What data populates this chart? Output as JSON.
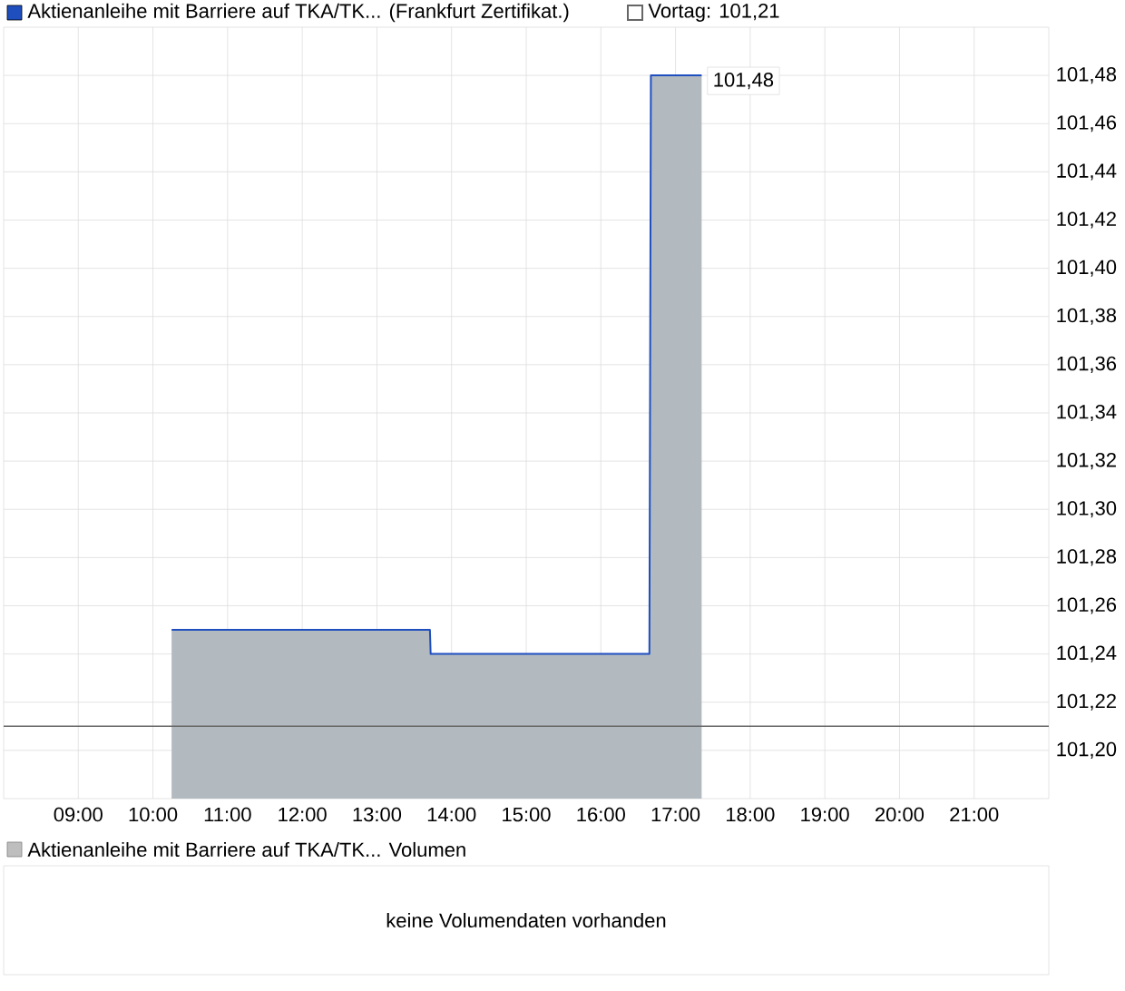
{
  "chart_data": [
    {
      "type": "area",
      "legend": "top",
      "series": [
        {
          "name": "Aktienanleihe mit Barriere auf TKA/TK... (Frankfurt Zertifikat.)",
          "color": "#1f4fbf",
          "x": [
            10.25,
            13.71,
            13.72,
            16.65,
            16.66,
            16.67,
            17.35
          ],
          "values": [
            101.25,
            101.25,
            101.24,
            101.24,
            101.36,
            101.48,
            101.48
          ],
          "value_labels": [
            null,
            null,
            null,
            null,
            null,
            null,
            "101,48"
          ]
        }
      ],
      "xlim": [
        8,
        22
      ],
      "xticks": [
        {
          "value": 9,
          "label": "09:00"
        },
        {
          "value": 10,
          "label": "10:00"
        },
        {
          "value": 11,
          "label": "11:00"
        },
        {
          "value": 12,
          "label": "12:00"
        },
        {
          "value": 13,
          "label": "13:00"
        },
        {
          "value": 14,
          "label": "14:00"
        },
        {
          "value": 15,
          "label": "15:00"
        },
        {
          "value": 16,
          "label": "16:00"
        },
        {
          "value": 17,
          "label": "17:00"
        },
        {
          "value": 18,
          "label": "18:00"
        },
        {
          "value": 19,
          "label": "19:00"
        },
        {
          "value": 20,
          "label": "20:00"
        },
        {
          "value": 21,
          "label": "21:00"
        }
      ],
      "ylim": [
        101.18,
        101.5
      ],
      "yticks": [
        {
          "value": 101.2,
          "label": "101,20"
        },
        {
          "value": 101.22,
          "label": "101,22"
        },
        {
          "value": 101.24,
          "label": "101,24"
        },
        {
          "value": 101.26,
          "label": "101,26"
        },
        {
          "value": 101.28,
          "label": "101,28"
        },
        {
          "value": 101.3,
          "label": "101,30"
        },
        {
          "value": 101.32,
          "label": "101,32"
        },
        {
          "value": 101.34,
          "label": "101,34"
        },
        {
          "value": 101.36,
          "label": "101,36"
        },
        {
          "value": 101.38,
          "label": "101,38"
        },
        {
          "value": 101.4,
          "label": "101,40"
        },
        {
          "value": 101.42,
          "label": "101,42"
        },
        {
          "value": 101.44,
          "label": "101,44"
        },
        {
          "value": 101.46,
          "label": "101,46"
        },
        {
          "value": 101.48,
          "label": "101,48"
        }
      ],
      "grid": true,
      "ref_lines": [
        {
          "axis": "y",
          "value": 101.21,
          "label": "Vortag: 101,21",
          "color": "#666666"
        }
      ]
    },
    {
      "type": "other",
      "title": "Aktienanleihe mit Barriere auf TKA/TK... Volumen",
      "annotations": [
        "keine Volumendaten vorhanden"
      ]
    }
  ]
}
